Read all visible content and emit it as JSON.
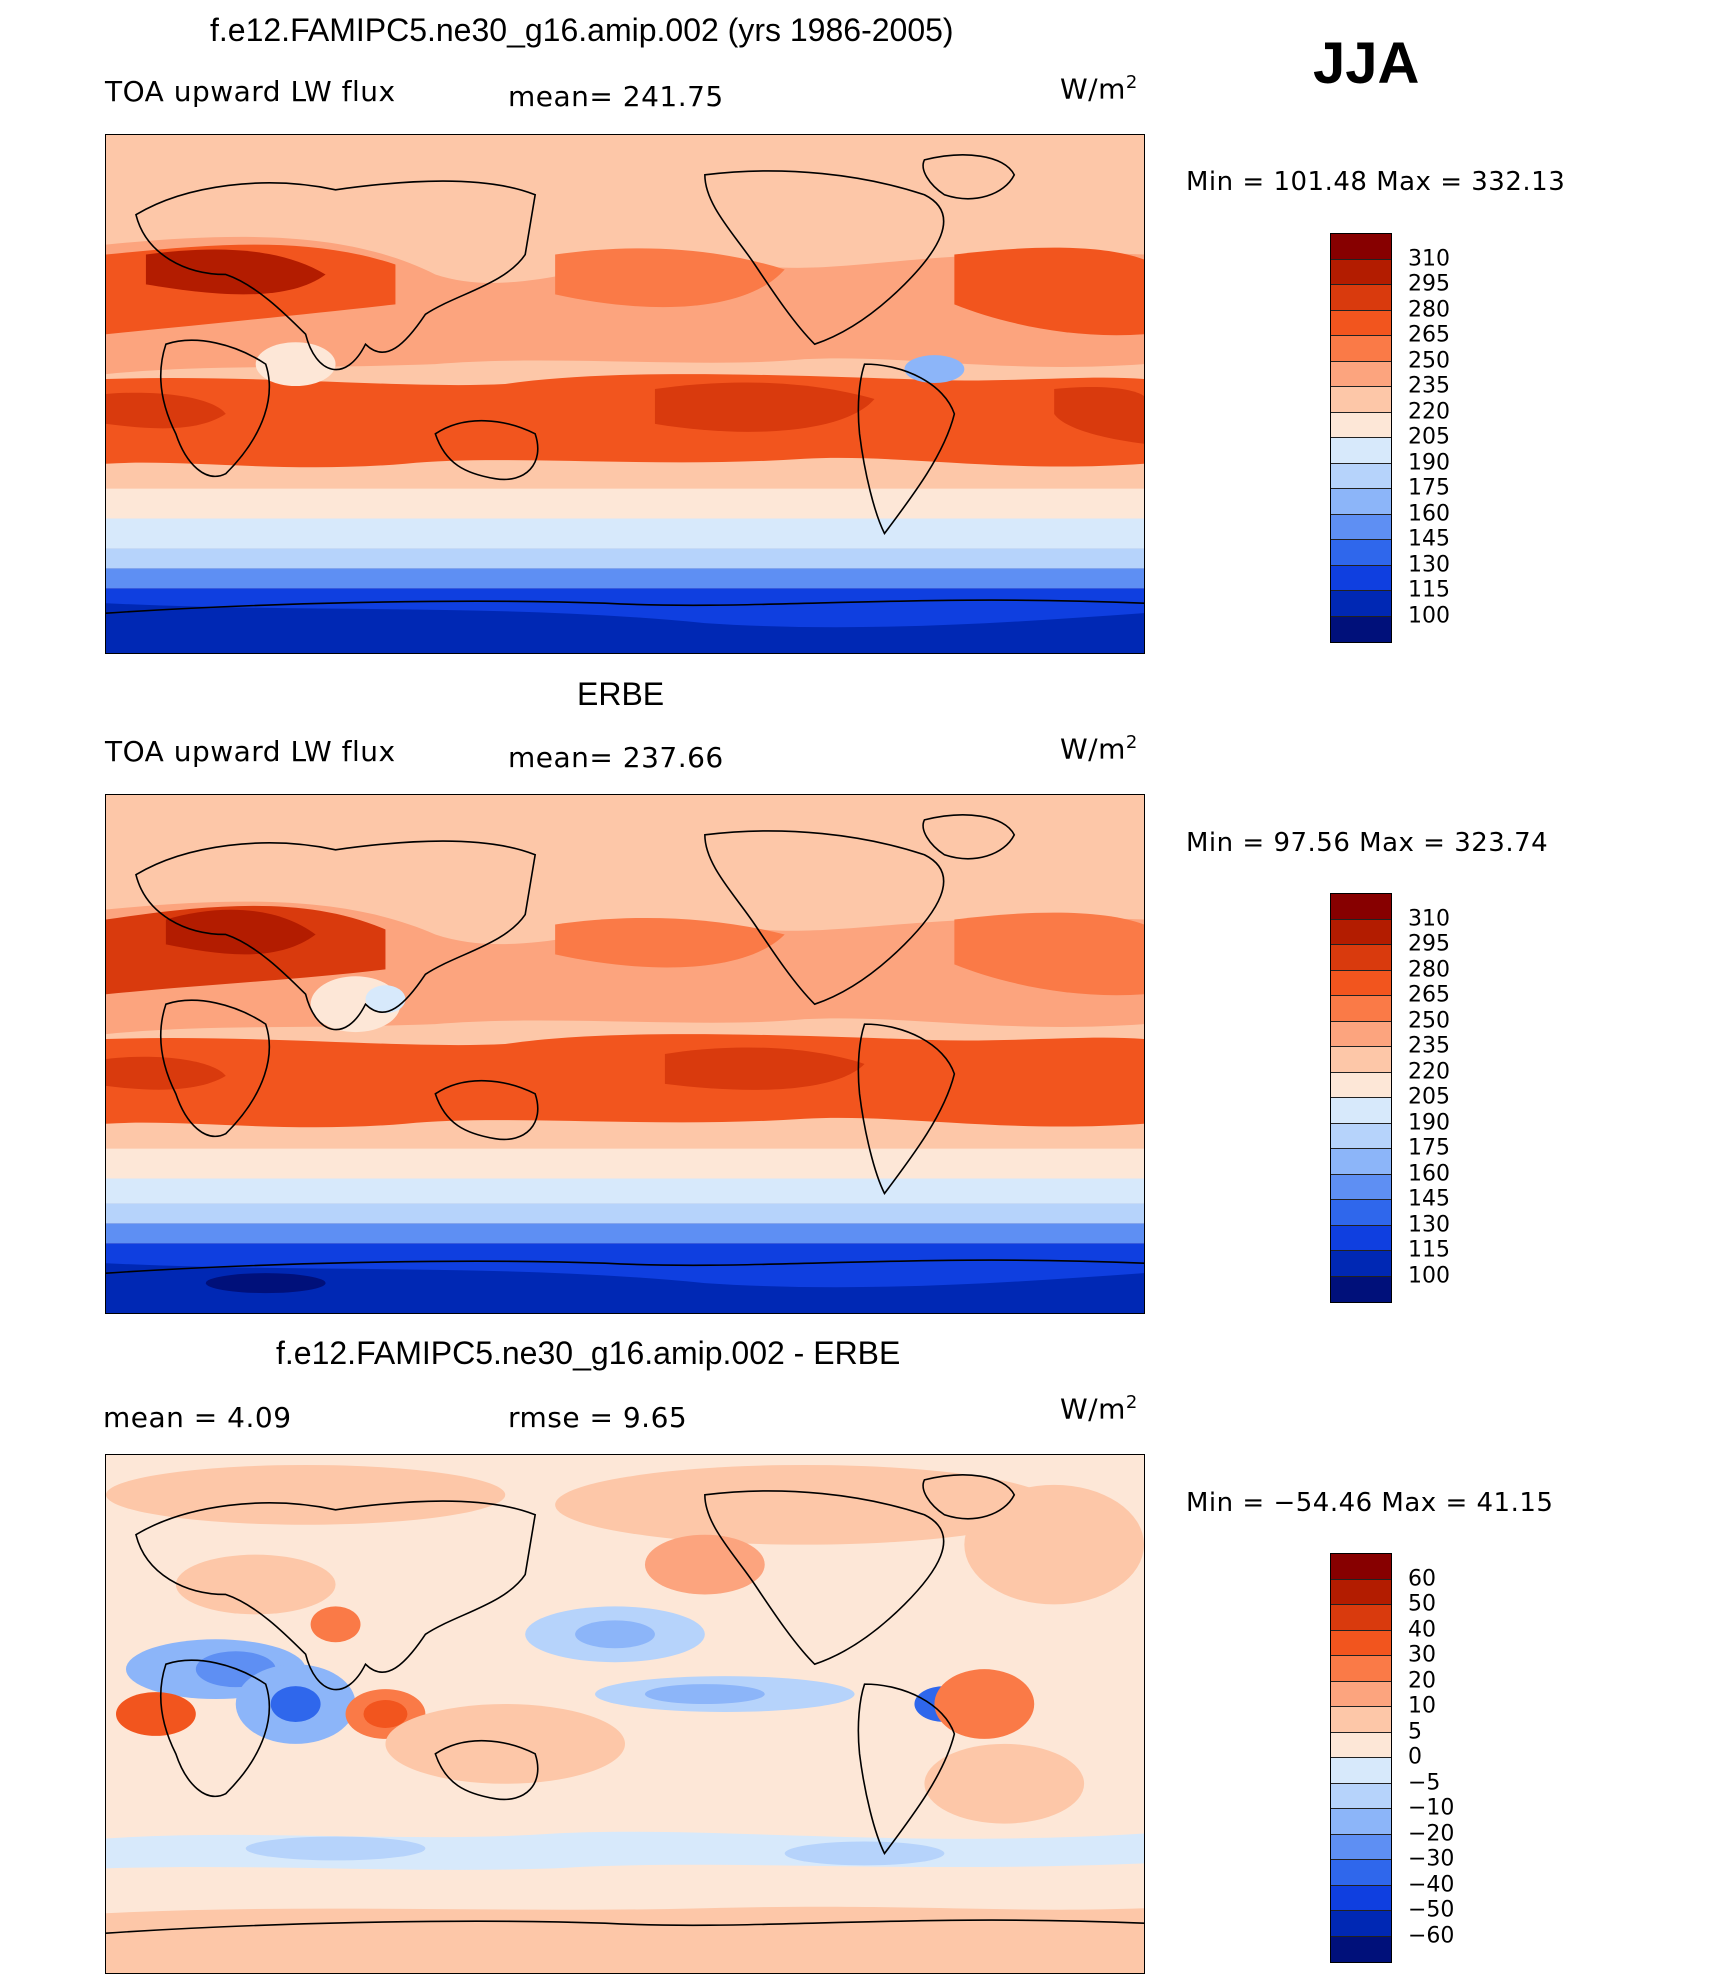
{
  "season": "JJA",
  "panels": [
    {
      "title": "f.e12.FAMIPC5.ne30_g16.amip.002 (yrs 1986-2005)",
      "left_label": "TOA upward LW flux",
      "center_label": "mean= 241.75",
      "units": "W/m",
      "units_sup": "2",
      "stats": "Min  =  101.48  Max  =  332.13",
      "colorbar_labels": [
        "310",
        "295",
        "280",
        "265",
        "250",
        "235",
        "220",
        "205",
        "190",
        "175",
        "160",
        "145",
        "130",
        "115",
        "100"
      ],
      "colorbar_colors": [
        "#870000",
        "#b31c00",
        "#d93a0d",
        "#f2551e",
        "#fa7a47",
        "#fca47e",
        "#fdc7a8",
        "#fde7d7",
        "#d7e9fb",
        "#b6d3fb",
        "#8cb5f9",
        "#5e8ff3",
        "#2f67ec",
        "#0f3fe0",
        "#0028b4",
        "#00107a"
      ]
    },
    {
      "title": "ERBE",
      "left_label": "TOA upward LW flux",
      "center_label": "mean= 237.66",
      "units": "W/m",
      "units_sup": "2",
      "stats": "Min  =   97.56  Max  =  323.74",
      "colorbar_labels": [
        "310",
        "295",
        "280",
        "265",
        "250",
        "235",
        "220",
        "205",
        "190",
        "175",
        "160",
        "145",
        "130",
        "115",
        "100"
      ],
      "colorbar_colors": [
        "#870000",
        "#b31c00",
        "#d93a0d",
        "#f2551e",
        "#fa7a47",
        "#fca47e",
        "#fdc7a8",
        "#fde7d7",
        "#d7e9fb",
        "#b6d3fb",
        "#8cb5f9",
        "#5e8ff3",
        "#2f67ec",
        "#0f3fe0",
        "#0028b4",
        "#00107a"
      ]
    },
    {
      "title": "f.e12.FAMIPC5.ne30_g16.amip.002 - ERBE",
      "left_label": "mean  =     4.09",
      "center_label": "rmse  =     9.65",
      "units": "W/m",
      "units_sup": "2",
      "stats": "Min  = −54.46  Max  =    41.15",
      "colorbar_labels": [
        "60",
        "50",
        "40",
        "30",
        "20",
        "10",
        "5",
        "0",
        "−5",
        "−10",
        "−20",
        "−30",
        "−40",
        "−50",
        "−60"
      ],
      "colorbar_colors": [
        "#870000",
        "#b31c00",
        "#d93a0d",
        "#f2551e",
        "#fa7a47",
        "#fca47e",
        "#fdc7a8",
        "#fde7d7",
        "#d7e9fb",
        "#b6d3fb",
        "#8cb5f9",
        "#5e8ff3",
        "#2f67ec",
        "#0f3fe0",
        "#0028b4",
        "#00107a"
      ]
    }
  ]
}
